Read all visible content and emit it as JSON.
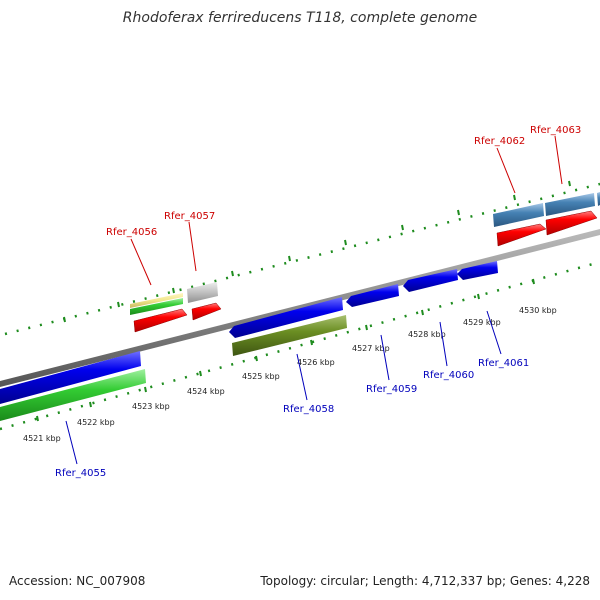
{
  "title": "Rhodoferax ferrireducens T118, complete genome",
  "footer": {
    "accession": "Accession: NC_007908",
    "summary": "Topology: circular; Length: 4,712,337 bp; Genes: 4,228"
  },
  "colors": {
    "backbone": "#888888",
    "tick": "#1e8c1e",
    "forward_label": "#cc0000",
    "reverse_label": "#0000bb",
    "gene_red": "#ff0000",
    "gene_blue": "#0000ee",
    "gene_green": "#33cc33",
    "gene_olive": "#6b8e23",
    "gene_steel": "#4682b4",
    "gene_gray": "#c0c0c0",
    "gene_tan": "#f0e68c"
  },
  "coordinate_labels": [
    "4521 kbp",
    "4522 kbp",
    "4523 kbp",
    "4524 kbp",
    "4525 kbp",
    "4526 kbp",
    "4527 kbp",
    "4528 kbp",
    "4529 kbp",
    "4530 kbp"
  ],
  "forward_genes": [
    "Rfer_4056",
    "Rfer_4057",
    "Rfer_4062",
    "Rfer_4063"
  ],
  "reverse_genes": [
    "Rfer_4055",
    "Rfer_4058",
    "Rfer_4059",
    "Rfer_4060",
    "Rfer_4061"
  ]
}
